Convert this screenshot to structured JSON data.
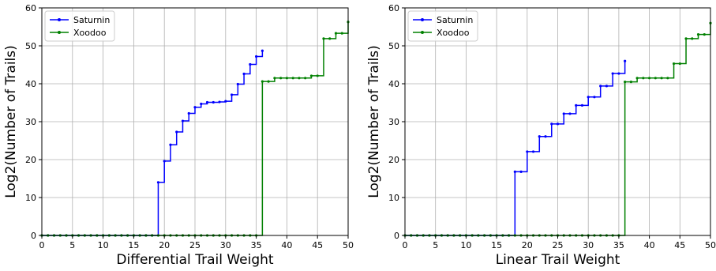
{
  "chart_data": [
    {
      "type": "line",
      "step": "post",
      "xlabel": "Differential Trail Weight",
      "ylabel": "Log2(Number of Trails)",
      "xlim": [
        0,
        50
      ],
      "ylim": [
        0,
        60
      ],
      "xticks": [
        0,
        5,
        10,
        15,
        20,
        25,
        30,
        35,
        40,
        45,
        50
      ],
      "yticks": [
        0,
        10,
        20,
        30,
        40,
        50,
        60
      ],
      "grid": true,
      "legend_position": "top-left",
      "series": [
        {
          "name": "Saturnin",
          "color": "#0000ff",
          "x": [
            0,
            1,
            2,
            3,
            4,
            5,
            6,
            7,
            8,
            9,
            10,
            11,
            12,
            13,
            14,
            15,
            16,
            17,
            18,
            19,
            20,
            21,
            22,
            23,
            24,
            25,
            26,
            27,
            28,
            29,
            30,
            31,
            32,
            33,
            34,
            35,
            36
          ],
          "y": [
            0,
            0,
            0,
            0,
            0,
            0,
            0,
            0,
            0,
            0,
            0,
            0,
            0,
            0,
            0,
            0,
            0,
            0,
            0,
            14.0,
            19.6,
            23.9,
            27.3,
            30.2,
            32.2,
            33.8,
            34.7,
            35.1,
            35.1,
            35.2,
            35.4,
            37.1,
            39.9,
            42.6,
            45.1,
            47.2,
            48.7
          ]
        },
        {
          "name": "Xoodoo",
          "color": "#008000",
          "x": [
            0,
            1,
            2,
            3,
            4,
            5,
            6,
            7,
            8,
            9,
            10,
            11,
            12,
            13,
            14,
            15,
            16,
            17,
            18,
            19,
            20,
            21,
            22,
            23,
            24,
            25,
            26,
            27,
            28,
            29,
            30,
            31,
            32,
            33,
            34,
            35,
            36,
            37,
            38,
            39,
            40,
            41,
            42,
            43,
            44,
            45,
            46,
            47,
            48,
            49,
            50
          ],
          "y": [
            0,
            0,
            0,
            0,
            0,
            0,
            0,
            0,
            0,
            0,
            0,
            0,
            0,
            0,
            0,
            0,
            0,
            0,
            0,
            0,
            0,
            0,
            0,
            0,
            0,
            0,
            0,
            0,
            0,
            0,
            0,
            0,
            0,
            0,
            0,
            0,
            40.6,
            40.6,
            41.5,
            41.5,
            41.5,
            41.5,
            41.5,
            41.5,
            42.1,
            42.1,
            51.9,
            51.9,
            53.3,
            53.3,
            56.3
          ]
        }
      ]
    },
    {
      "type": "line",
      "step": "post",
      "xlabel": "Linear Trail Weight",
      "ylabel": "Log2(Number of Trails)",
      "xlim": [
        0,
        50
      ],
      "ylim": [
        0,
        60
      ],
      "xticks": [
        0,
        5,
        10,
        15,
        20,
        25,
        30,
        35,
        40,
        45,
        50
      ],
      "yticks": [
        0,
        10,
        20,
        30,
        40,
        50,
        60
      ],
      "grid": true,
      "legend_position": "top-left",
      "series": [
        {
          "name": "Saturnin",
          "color": "#0000ff",
          "x": [
            0,
            1,
            2,
            3,
            4,
            5,
            6,
            7,
            8,
            9,
            10,
            11,
            12,
            13,
            14,
            15,
            16,
            17,
            18,
            19,
            20,
            21,
            22,
            23,
            24,
            25,
            26,
            27,
            28,
            29,
            30,
            31,
            32,
            33,
            34,
            35,
            36
          ],
          "y": [
            0,
            0,
            0,
            0,
            0,
            0,
            0,
            0,
            0,
            0,
            0,
            0,
            0,
            0,
            0,
            0,
            0,
            0,
            16.8,
            16.8,
            22.1,
            22.1,
            26.1,
            26.1,
            29.4,
            29.4,
            32.1,
            32.1,
            34.3,
            34.3,
            36.5,
            36.5,
            39.4,
            39.4,
            42.7,
            42.7,
            46.0
          ]
        },
        {
          "name": "Xoodoo",
          "color": "#008000",
          "x": [
            0,
            1,
            2,
            3,
            4,
            5,
            6,
            7,
            8,
            9,
            10,
            11,
            12,
            13,
            14,
            15,
            16,
            17,
            18,
            19,
            20,
            21,
            22,
            23,
            24,
            25,
            26,
            27,
            28,
            29,
            30,
            31,
            32,
            33,
            34,
            35,
            36,
            37,
            38,
            39,
            40,
            41,
            42,
            43,
            44,
            45,
            46,
            47,
            48,
            49,
            50
          ],
          "y": [
            0,
            0,
            0,
            0,
            0,
            0,
            0,
            0,
            0,
            0,
            0,
            0,
            0,
            0,
            0,
            0,
            0,
            0,
            0,
            0,
            0,
            0,
            0,
            0,
            0,
            0,
            0,
            0,
            0,
            0,
            0,
            0,
            0,
            0,
            0,
            0,
            40.5,
            40.5,
            41.5,
            41.5,
            41.5,
            41.5,
            41.5,
            41.5,
            45.3,
            45.3,
            51.9,
            51.9,
            53.0,
            53.0,
            56.0
          ]
        }
      ]
    }
  ]
}
